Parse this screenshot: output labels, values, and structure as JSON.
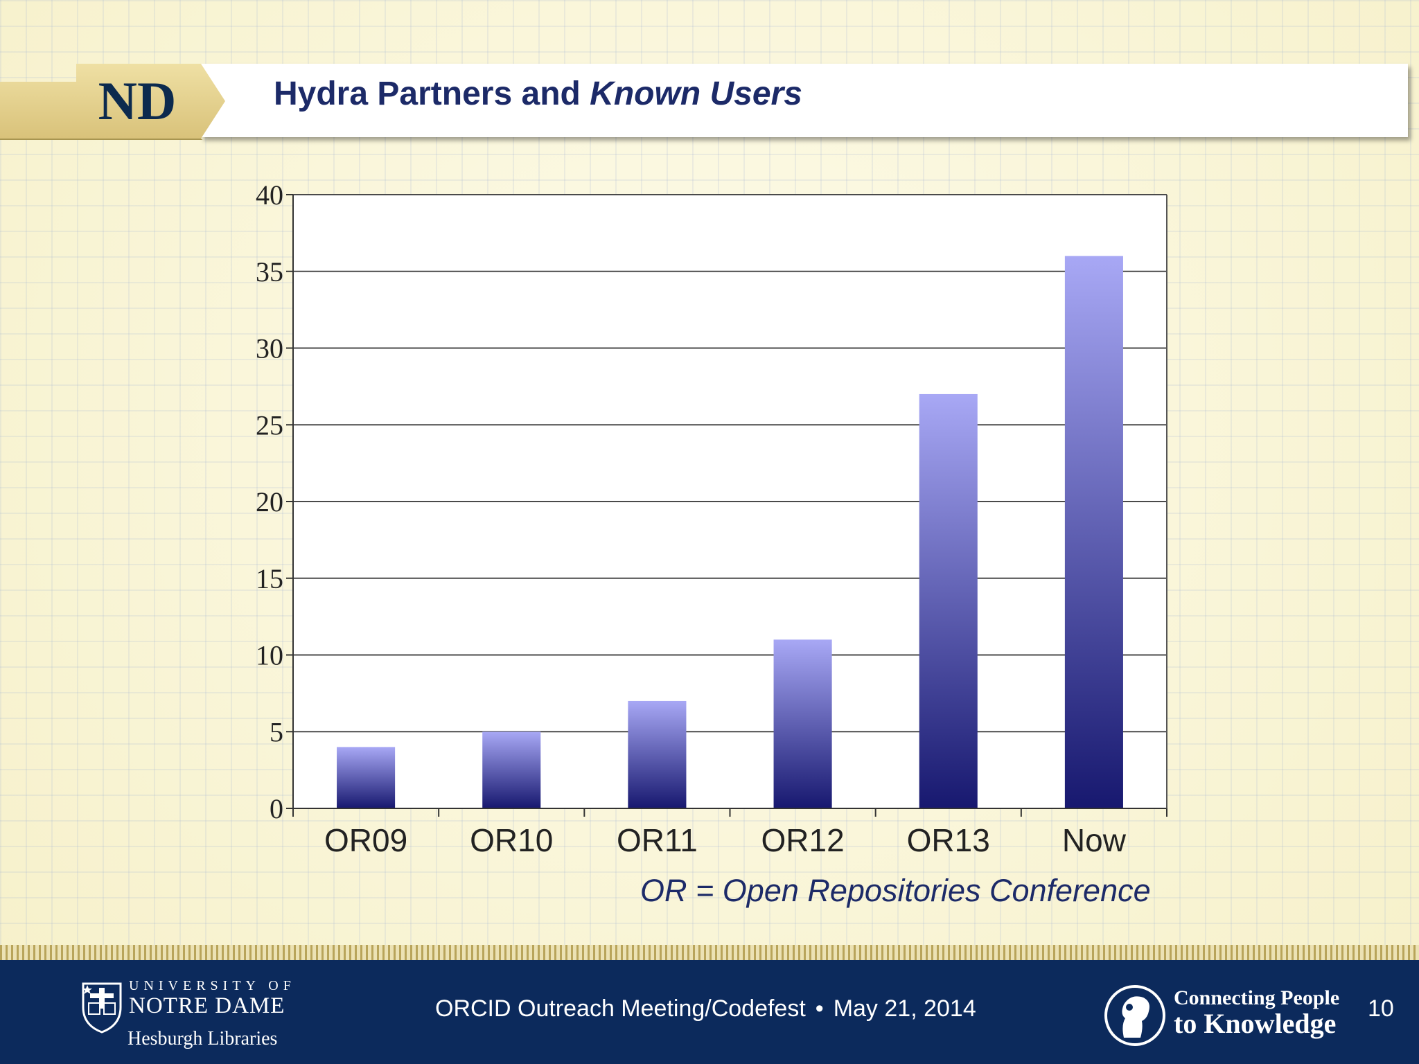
{
  "slide": {
    "title_part1": "Hydra Partners and ",
    "title_part2": "Known Users",
    "logo_text": "ND",
    "footnote": "OR = Open Repositories Conference"
  },
  "footer": {
    "univ_of": "UNIVERSITY OF",
    "notre_dame": "NOTRE DAME",
    "libraries": "Hesburgh Libraries",
    "event": "ORCID Outreach Meeting/Codefest",
    "separator": "•",
    "date": "May 21, 2014",
    "tagline_line1": "Connecting People",
    "tagline_line2": "to Knowledge",
    "page_number": "10"
  },
  "colors": {
    "navy": "#1c2a68",
    "gold": "#e6d28e",
    "footer_blue": "#0c2a5c",
    "bar_top": "#a8a8f5",
    "bar_bottom": "#17186f"
  },
  "chart_data": {
    "type": "bar",
    "title": "",
    "xlabel": "",
    "ylabel": "",
    "categories": [
      "OR09",
      "OR10",
      "OR11",
      "OR12",
      "OR13",
      "Now"
    ],
    "values": [
      4,
      5,
      7,
      11,
      27,
      36
    ],
    "ylim": [
      0,
      40
    ],
    "yticks": [
      0,
      5,
      10,
      15,
      20,
      25,
      30,
      35,
      40
    ],
    "grid": true,
    "legend": "none"
  }
}
